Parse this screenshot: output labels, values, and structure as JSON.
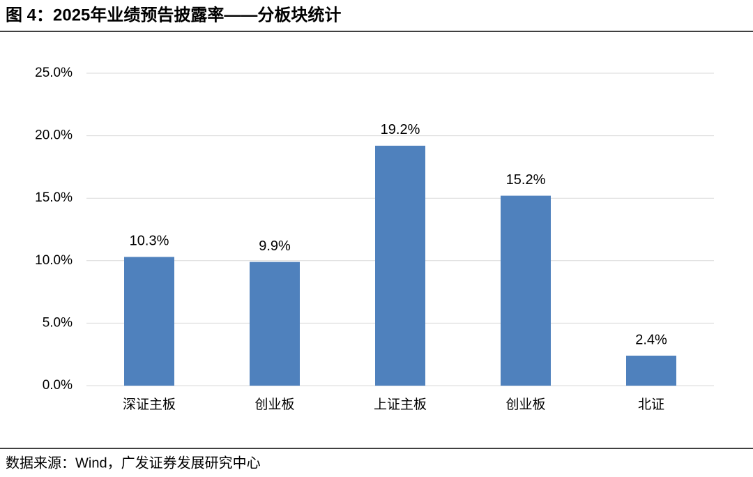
{
  "chart_data": {
    "type": "bar",
    "title": "图 4：2025年业绩预告披露率——分板块统计",
    "source": "数据来源：Wind，广发证券发展研究中心",
    "categories": [
      "深证主板",
      "创业板",
      "上证主板",
      "创业板",
      "北证"
    ],
    "values": [
      10.3,
      9.9,
      19.2,
      15.2,
      2.4
    ],
    "value_labels": [
      "10.3%",
      "9.9%",
      "19.2%",
      "15.2%",
      "2.4%"
    ],
    "color": "#4f81bd",
    "ylim": [
      0,
      25
    ],
    "yticks": [
      {
        "value": 0,
        "label": "0.0%"
      },
      {
        "value": 5,
        "label": "5.0%"
      },
      {
        "value": 10,
        "label": "10.0%"
      },
      {
        "value": 15,
        "label": "15.0%"
      },
      {
        "value": 20,
        "label": "20.0%"
      },
      {
        "value": 25,
        "label": "25.0%"
      }
    ],
    "grid": true
  }
}
